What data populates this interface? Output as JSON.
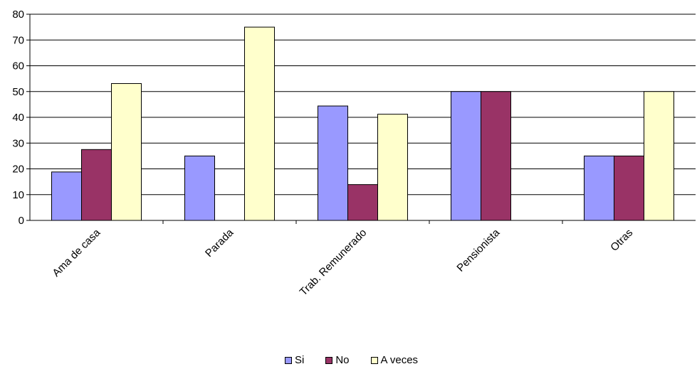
{
  "chart_data": {
    "type": "bar",
    "title": "",
    "xlabel": "",
    "ylabel": "",
    "categories": [
      "Ama de casa",
      "Parada",
      "Trab. Remunerado",
      "Pensionista",
      "Otras"
    ],
    "series": [
      {
        "name": "Si",
        "color": "#9999ff",
        "values": [
          18.8,
          25,
          44.4,
          50,
          25
        ]
      },
      {
        "name": "No",
        "color": "#993366",
        "values": [
          27.5,
          0,
          13.9,
          50,
          25
        ]
      },
      {
        "name": "A veces",
        "color": "#ffffcc",
        "values": [
          53.1,
          75,
          41.2,
          0,
          50
        ]
      }
    ],
    "ylim": [
      0,
      80
    ],
    "yticks": [
      "0",
      "10",
      "20",
      "30",
      "40",
      "50",
      "60",
      "70",
      "80"
    ],
    "grid": true,
    "legend_position": "bottom"
  }
}
